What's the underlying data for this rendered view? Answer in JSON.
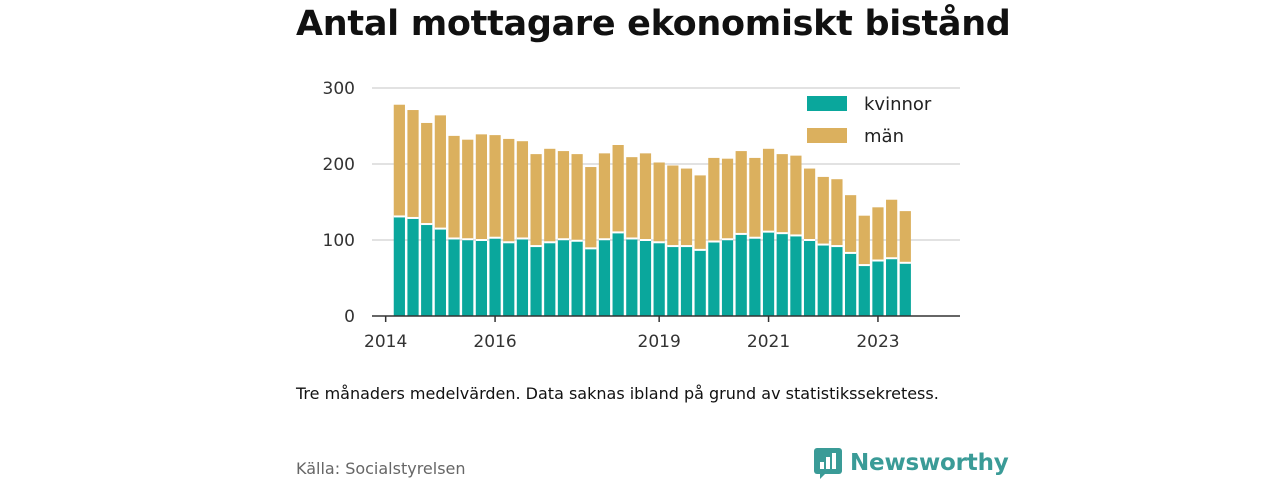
{
  "title": "Antal mottagare ekonomiskt bistånd",
  "note": "Tre månaders medelvärden. Data saknas ibland på grund av statistikssekretess.",
  "source": "Källa: Socialstyrelsen",
  "brand": {
    "name": "Newsworthy",
    "icon": "newsworthy-logo-icon",
    "color": "#3a9b97"
  },
  "chart_data": {
    "type": "bar",
    "stacked": true,
    "x_ticks": [
      {
        "label": "2014",
        "pos": 2014.0
      },
      {
        "label": "2016",
        "pos": 2016.0
      },
      {
        "label": "2019",
        "pos": 2019.0
      },
      {
        "label": "2021",
        "pos": 2021.0
      },
      {
        "label": "2023",
        "pos": 2023.0
      }
    ],
    "xlim": [
      2013.75,
      2024.5
    ],
    "ylim": [
      0,
      300
    ],
    "y_ticks": [
      0,
      100,
      200,
      300
    ],
    "grid": "horizontal",
    "legend_position": "top-right",
    "x_start": 2014.25,
    "x_step": 0.25,
    "series": [
      {
        "name": "kvinnor",
        "color": "#0aa79c",
        "values": [
          131,
          129,
          121,
          115,
          102,
          101,
          100,
          103,
          97,
          102,
          92,
          97,
          101,
          99,
          89,
          101,
          110,
          102,
          100,
          97,
          92,
          92,
          87,
          98,
          101,
          108,
          103,
          111,
          109,
          106,
          100,
          94,
          92,
          83,
          67,
          73,
          76,
          70
        ]
      },
      {
        "name": "män",
        "color": "#dbb05e",
        "values": [
          147,
          142,
          133,
          149,
          135,
          131,
          139,
          135,
          136,
          128,
          121,
          123,
          116,
          114,
          107,
          113,
          115,
          107,
          114,
          105,
          106,
          102,
          98,
          110,
          106,
          109,
          105,
          109,
          104,
          105,
          94,
          89,
          88,
          76,
          65,
          70,
          77,
          68
        ]
      }
    ]
  }
}
